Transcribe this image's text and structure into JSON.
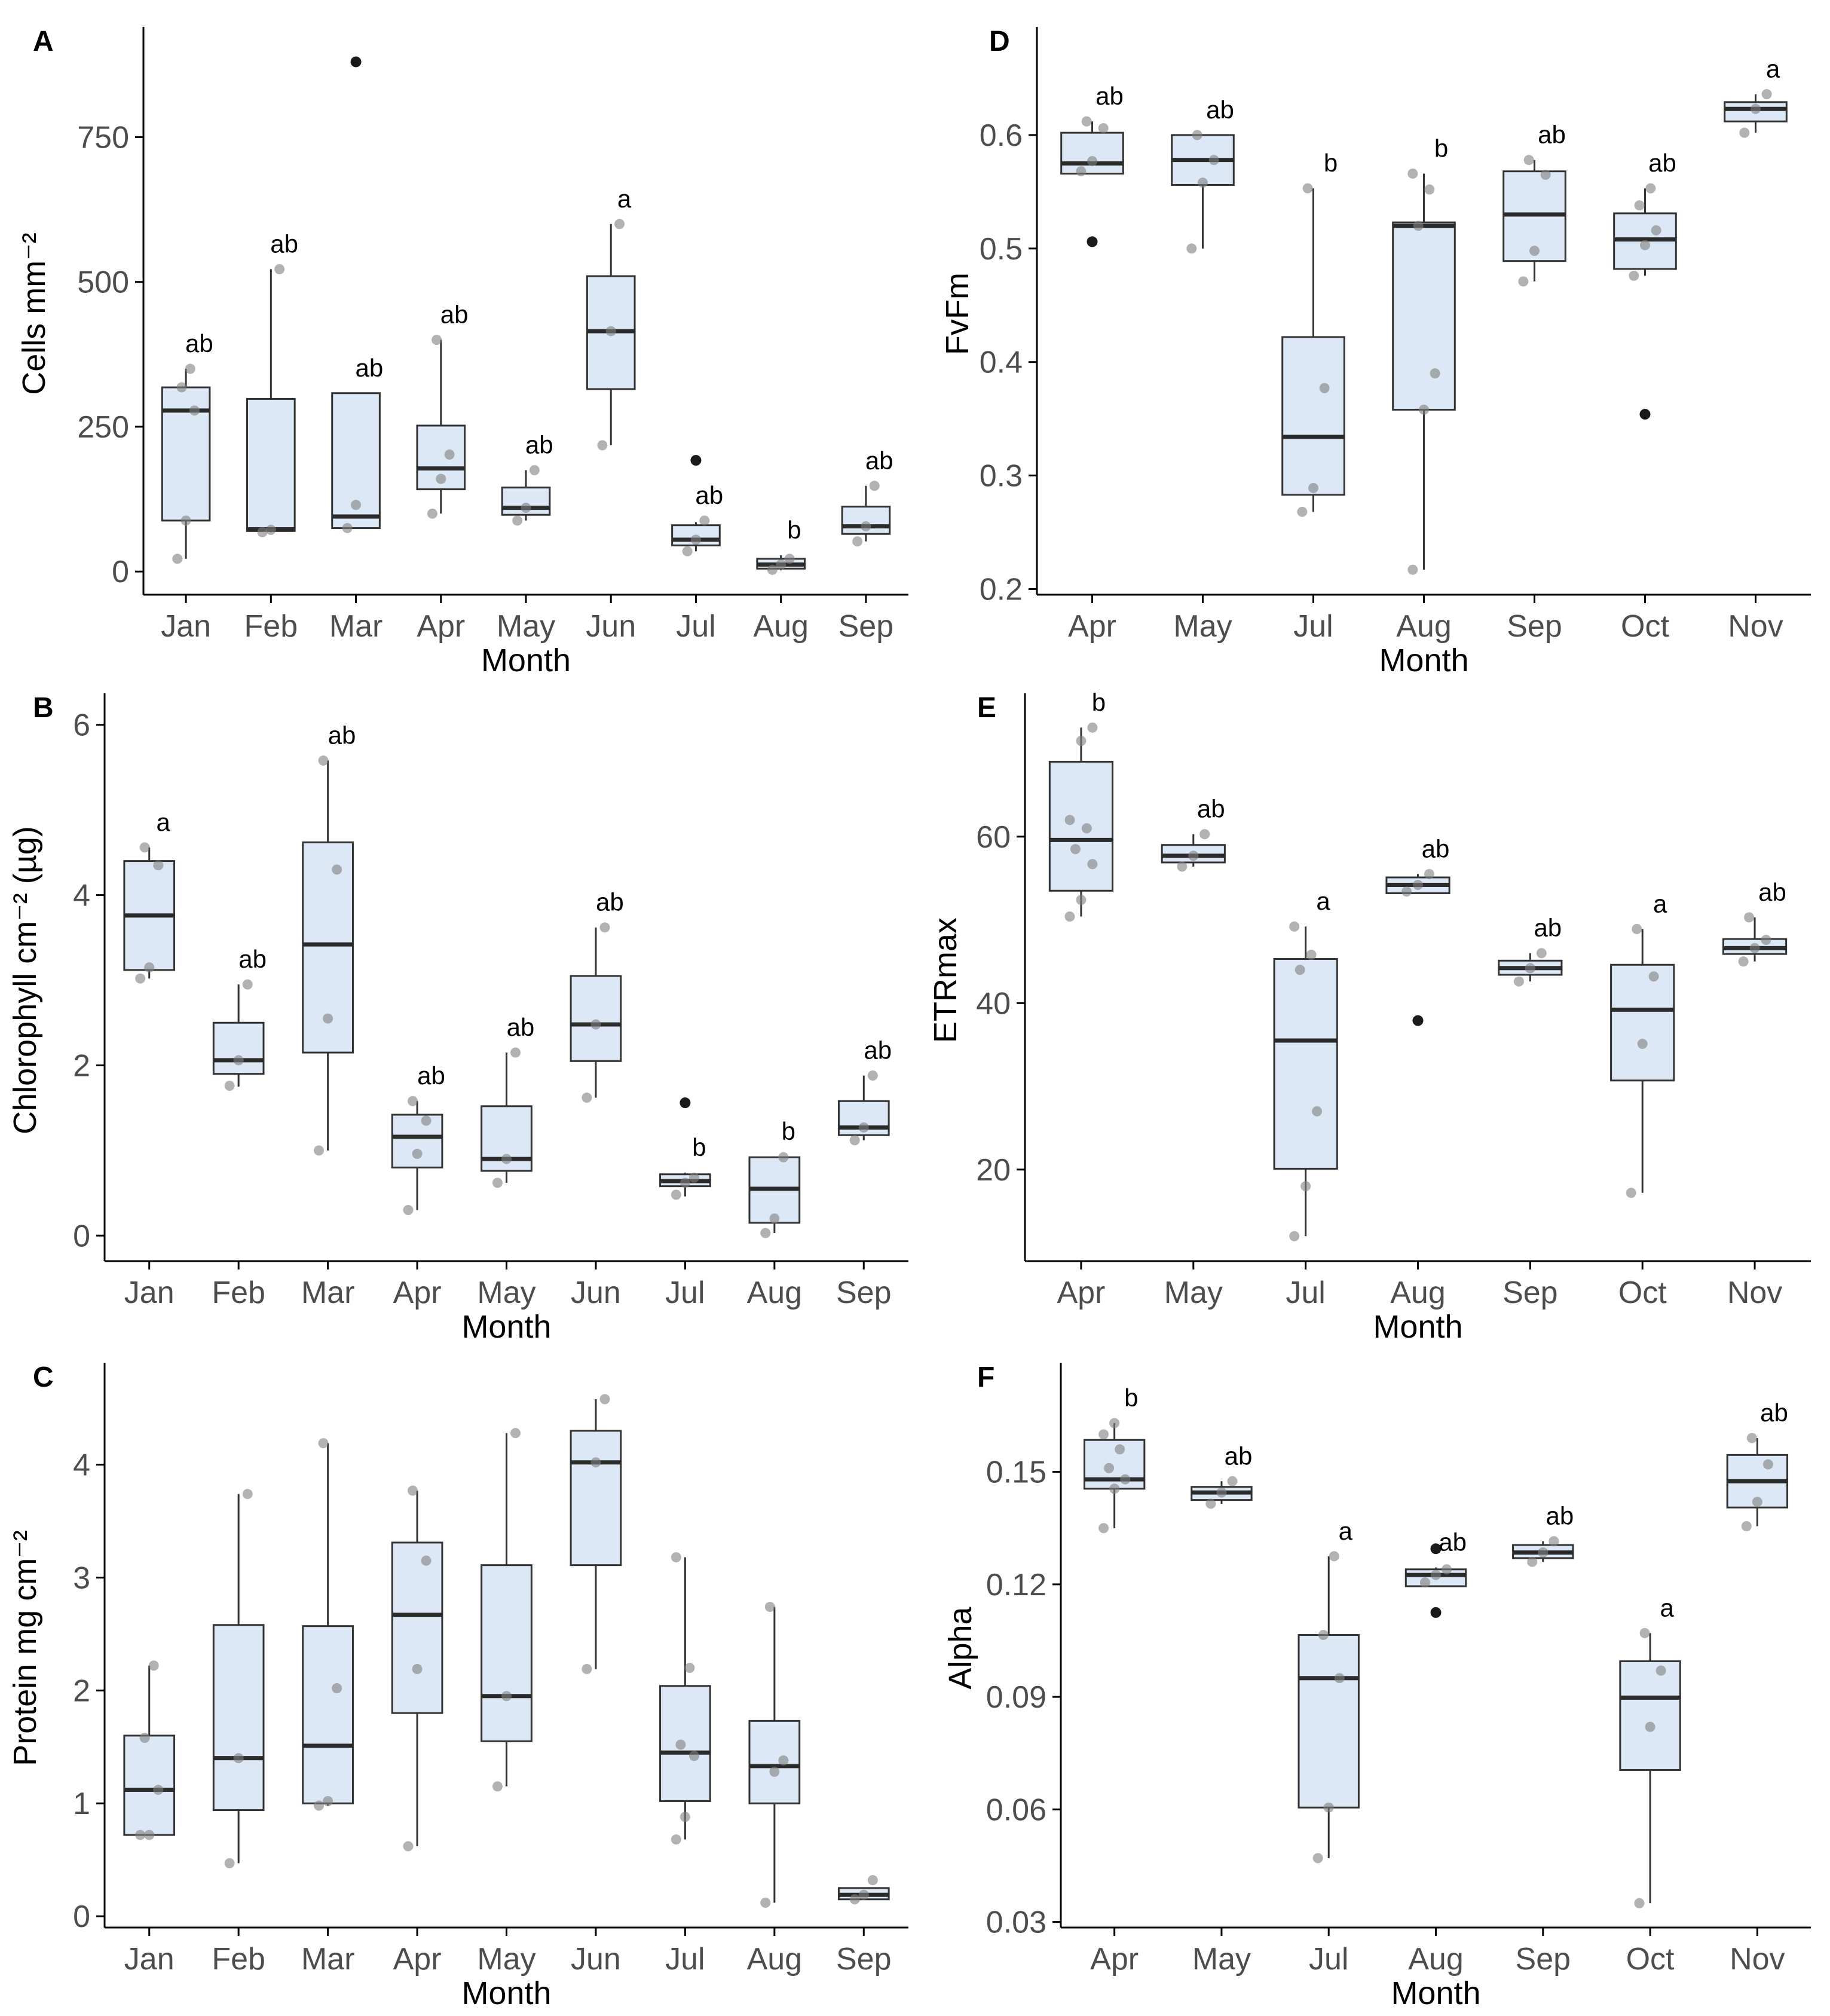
{
  "chart_data": [
    {
      "panel": "A",
      "type": "boxplot",
      "xlabel": "Month",
      "ylabel": "Cells mm⁻²",
      "ylim": [
        -40,
        930
      ],
      "yticks": [
        0,
        250,
        500,
        750
      ],
      "ytick_labels": [
        "0",
        "250",
        "500",
        "750"
      ],
      "categories": [
        {
          "label": "Jan",
          "q1": 88,
          "median": 278,
          "q3": 318,
          "whisker_low": 22,
          "whisker_high": 350,
          "points": [
            22,
            88,
            278,
            318,
            350
          ],
          "outliers": [],
          "letter": "ab"
        },
        {
          "label": "Feb",
          "q1": 70,
          "median": 73,
          "q3": 298,
          "whisker_low": 68,
          "whisker_high": 522,
          "points": [
            68,
            72,
            522
          ],
          "outliers": [],
          "letter": "ab"
        },
        {
          "label": "Mar",
          "q1": 75,
          "median": 95,
          "q3": 308,
          "whisker_low": 75,
          "whisker_high": 308,
          "points": [
            75,
            115
          ],
          "outliers": [
            880
          ],
          "letter": "ab"
        },
        {
          "label": "Apr",
          "q1": 142,
          "median": 178,
          "q3": 252,
          "whisker_low": 100,
          "whisker_high": 400,
          "points": [
            100,
            160,
            202,
            400
          ],
          "outliers": [],
          "letter": "ab"
        },
        {
          "label": "May",
          "q1": 98,
          "median": 110,
          "q3": 145,
          "whisker_low": 88,
          "whisker_high": 175,
          "points": [
            88,
            110,
            175
          ],
          "outliers": [],
          "letter": "ab"
        },
        {
          "label": "Jun",
          "q1": 315,
          "median": 415,
          "q3": 510,
          "whisker_low": 218,
          "whisker_high": 600,
          "points": [
            218,
            415,
            600
          ],
          "outliers": [],
          "letter": "a"
        },
        {
          "label": "Jul",
          "q1": 45,
          "median": 55,
          "q3": 80,
          "whisker_low": 35,
          "whisker_high": 85,
          "points": [
            35,
            55,
            88
          ],
          "outliers": [
            192
          ],
          "letter": "ab"
        },
        {
          "label": "Aug",
          "q1": 5,
          "median": 12,
          "q3": 22,
          "whisker_low": 2,
          "whisker_high": 28,
          "points": [
            3,
            12,
            22
          ],
          "outliers": [],
          "letter": "b"
        },
        {
          "label": "Sep",
          "q1": 65,
          "median": 78,
          "q3": 112,
          "whisker_low": 52,
          "whisker_high": 148,
          "points": [
            52,
            78,
            148
          ],
          "outliers": [],
          "letter": "ab"
        }
      ]
    },
    {
      "panel": "B",
      "type": "boxplot",
      "xlabel": "Month",
      "ylabel": "Chlorophyll cm⁻² (µg)",
      "ylim": [
        -0.3,
        6.3
      ],
      "yticks": [
        0,
        2,
        4,
        6
      ],
      "ytick_labels": [
        "0",
        "2",
        "4",
        "6"
      ],
      "categories": [
        {
          "label": "Jan",
          "q1": 3.12,
          "median": 3.76,
          "q3": 4.4,
          "whisker_low": 3.02,
          "whisker_high": 4.56,
          "points": [
            3.02,
            3.15,
            4.35,
            4.56
          ],
          "outliers": [],
          "letter": "a"
        },
        {
          "label": "Feb",
          "q1": 1.9,
          "median": 2.06,
          "q3": 2.5,
          "whisker_low": 1.75,
          "whisker_high": 2.95,
          "points": [
            1.76,
            2.06,
            2.95
          ],
          "outliers": [],
          "letter": "ab"
        },
        {
          "label": "Mar",
          "q1": 2.15,
          "median": 3.42,
          "q3": 4.62,
          "whisker_low": 1.0,
          "whisker_high": 5.58,
          "points": [
            1.0,
            2.55,
            4.3,
            5.58
          ],
          "outliers": [],
          "letter": "ab"
        },
        {
          "label": "Apr",
          "q1": 0.8,
          "median": 1.16,
          "q3": 1.42,
          "whisker_low": 0.3,
          "whisker_high": 1.58,
          "points": [
            0.3,
            0.96,
            1.35,
            1.58
          ],
          "outliers": [],
          "letter": "ab"
        },
        {
          "label": "May",
          "q1": 0.76,
          "median": 0.9,
          "q3": 1.52,
          "whisker_low": 0.62,
          "whisker_high": 2.15,
          "points": [
            0.62,
            0.9,
            2.15
          ],
          "outliers": [],
          "letter": "ab"
        },
        {
          "label": "Jun",
          "q1": 2.05,
          "median": 2.48,
          "q3": 3.05,
          "whisker_low": 1.62,
          "whisker_high": 3.62,
          "points": [
            1.62,
            2.48,
            3.62
          ],
          "outliers": [],
          "letter": "ab"
        },
        {
          "label": "Jul",
          "q1": 0.58,
          "median": 0.64,
          "q3": 0.72,
          "whisker_low": 0.46,
          "whisker_high": 0.74,
          "points": [
            0.48,
            0.62,
            0.68
          ],
          "outliers": [
            1.56
          ],
          "letter": "b"
        },
        {
          "label": "Aug",
          "q1": 0.15,
          "median": 0.55,
          "q3": 0.92,
          "whisker_low": 0.03,
          "whisker_high": 0.93,
          "points": [
            0.03,
            0.2,
            0.92
          ],
          "outliers": [],
          "letter": "b"
        },
        {
          "label": "Sep",
          "q1": 1.18,
          "median": 1.27,
          "q3": 1.58,
          "whisker_low": 1.12,
          "whisker_high": 1.88,
          "points": [
            1.12,
            1.27,
            1.88
          ],
          "outliers": [],
          "letter": "ab"
        }
      ]
    },
    {
      "panel": "C",
      "type": "boxplot",
      "xlabel": "Month",
      "ylabel": "Protein mg cm⁻²",
      "ylim": [
        -0.1,
        4.85
      ],
      "yticks": [
        0,
        1,
        2,
        3,
        4
      ],
      "ytick_labels": [
        "0",
        "1",
        "2",
        "3",
        "4"
      ],
      "categories": [
        {
          "label": "Jan",
          "q1": 0.72,
          "median": 1.12,
          "q3": 1.6,
          "whisker_low": 0.72,
          "whisker_high": 2.22,
          "points": [
            0.72,
            0.72,
            1.12,
            1.58,
            2.22
          ],
          "outliers": [],
          "letter": ""
        },
        {
          "label": "Feb",
          "q1": 0.94,
          "median": 1.4,
          "q3": 2.58,
          "whisker_low": 0.47,
          "whisker_high": 3.74,
          "points": [
            0.47,
            1.4,
            3.74
          ],
          "outliers": [],
          "letter": ""
        },
        {
          "label": "Mar",
          "q1": 1.0,
          "median": 1.51,
          "q3": 2.57,
          "whisker_low": 0.98,
          "whisker_high": 4.19,
          "points": [
            0.98,
            1.02,
            2.02,
            4.19
          ],
          "outliers": [],
          "letter": ""
        },
        {
          "label": "Apr",
          "q1": 1.8,
          "median": 2.67,
          "q3": 3.31,
          "whisker_low": 0.62,
          "whisker_high": 3.77,
          "points": [
            0.62,
            2.19,
            3.15,
            3.77
          ],
          "outliers": [],
          "letter": ""
        },
        {
          "label": "May",
          "q1": 1.55,
          "median": 1.95,
          "q3": 3.11,
          "whisker_low": 1.15,
          "whisker_high": 4.28,
          "points": [
            1.15,
            1.95,
            4.28
          ],
          "outliers": [],
          "letter": ""
        },
        {
          "label": "Jun",
          "q1": 3.11,
          "median": 4.02,
          "q3": 4.3,
          "whisker_low": 2.19,
          "whisker_high": 4.58,
          "points": [
            2.19,
            4.02,
            4.58
          ],
          "outliers": [],
          "letter": ""
        },
        {
          "label": "Jul",
          "q1": 1.02,
          "median": 1.45,
          "q3": 2.04,
          "whisker_low": 0.68,
          "whisker_high": 3.18,
          "points": [
            0.68,
            0.88,
            1.42,
            1.52,
            2.2,
            3.18
          ],
          "outliers": [],
          "letter": ""
        },
        {
          "label": "Aug",
          "q1": 1.0,
          "median": 1.33,
          "q3": 1.73,
          "whisker_low": 0.12,
          "whisker_high": 2.74,
          "points": [
            0.12,
            1.28,
            1.38,
            2.74
          ],
          "outliers": [],
          "letter": ""
        },
        {
          "label": "Sep",
          "q1": 0.15,
          "median": 0.19,
          "q3": 0.25,
          "whisker_low": 0.15,
          "whisker_high": 0.25,
          "points": [
            0.15,
            0.19,
            0.32
          ],
          "outliers": [],
          "letter": ""
        }
      ]
    },
    {
      "panel": "D",
      "type": "boxplot",
      "xlabel": "Month",
      "ylabel": "FvFm",
      "ylim": [
        0.195,
        0.69
      ],
      "yticks": [
        0.2,
        0.3,
        0.4,
        0.5,
        0.6
      ],
      "ytick_labels": [
        "0.2",
        "0.3",
        "0.4",
        "0.5",
        "0.6"
      ],
      "categories": [
        {
          "label": "Apr",
          "q1": 0.566,
          "median": 0.575,
          "q3": 0.602,
          "whisker_low": 0.566,
          "whisker_high": 0.612,
          "points": [
            0.568,
            0.577,
            0.606,
            0.612
          ],
          "outliers": [
            0.506
          ],
          "letter": "ab"
        },
        {
          "label": "May",
          "q1": 0.556,
          "median": 0.578,
          "q3": 0.6,
          "whisker_low": 0.5,
          "whisker_high": 0.6,
          "points": [
            0.5,
            0.558,
            0.578,
            0.6
          ],
          "outliers": [],
          "letter": "ab"
        },
        {
          "label": "Jul",
          "q1": 0.283,
          "median": 0.334,
          "q3": 0.422,
          "whisker_low": 0.268,
          "whisker_high": 0.553,
          "points": [
            0.268,
            0.289,
            0.377,
            0.553
          ],
          "outliers": [],
          "letter": "b"
        },
        {
          "label": "Aug",
          "q1": 0.358,
          "median": 0.52,
          "q3": 0.523,
          "whisker_low": 0.217,
          "whisker_high": 0.566,
          "points": [
            0.217,
            0.358,
            0.39,
            0.52,
            0.552,
            0.566
          ],
          "outliers": [],
          "letter": "b"
        },
        {
          "label": "Sep",
          "q1": 0.489,
          "median": 0.53,
          "q3": 0.568,
          "whisker_low": 0.471,
          "whisker_high": 0.578,
          "points": [
            0.471,
            0.498,
            0.565,
            0.578
          ],
          "outliers": [],
          "letter": "ab"
        },
        {
          "label": "Oct",
          "q1": 0.482,
          "median": 0.508,
          "q3": 0.531,
          "whisker_low": 0.476,
          "whisker_high": 0.553,
          "points": [
            0.476,
            0.503,
            0.516,
            0.538,
            0.553
          ],
          "outliers": [
            0.354
          ],
          "letter": "ab"
        },
        {
          "label": "Nov",
          "q1": 0.612,
          "median": 0.623,
          "q3": 0.629,
          "whisker_low": 0.602,
          "whisker_high": 0.636,
          "points": [
            0.602,
            0.623,
            0.636
          ],
          "outliers": [],
          "letter": "a"
        }
      ]
    },
    {
      "panel": "E",
      "type": "boxplot",
      "xlabel": "Month",
      "ylabel": "ETRmax",
      "ylim": [
        9,
        76.5
      ],
      "yticks": [
        20,
        40,
        60
      ],
      "ytick_labels": [
        "20",
        "40",
        "60"
      ],
      "categories": [
        {
          "label": "Apr",
          "q1": 53.5,
          "median": 59.6,
          "q3": 69.0,
          "whisker_low": 50.4,
          "whisker_high": 73.1,
          "points": [
            50.4,
            52.4,
            56.7,
            58.5,
            61.0,
            62.0,
            71.5,
            73.1
          ],
          "outliers": [],
          "letter": "b"
        },
        {
          "label": "May",
          "q1": 56.9,
          "median": 57.7,
          "q3": 59.0,
          "whisker_low": 56.4,
          "whisker_high": 60.3,
          "points": [
            56.4,
            57.7,
            60.3
          ],
          "outliers": [],
          "letter": "ab"
        },
        {
          "label": "Jul",
          "q1": 20.1,
          "median": 35.5,
          "q3": 45.3,
          "whisker_low": 12.0,
          "whisker_high": 49.2,
          "points": [
            12.0,
            18.0,
            27.0,
            44.0,
            45.8,
            49.2
          ],
          "outliers": [],
          "letter": "a"
        },
        {
          "label": "Aug",
          "q1": 53.2,
          "median": 54.2,
          "q3": 55.1,
          "whisker_low": 53.2,
          "whisker_high": 55.5,
          "points": [
            53.4,
            54.2,
            55.5
          ],
          "outliers": [
            37.9
          ],
          "letter": "ab"
        },
        {
          "label": "Sep",
          "q1": 43.4,
          "median": 44.2,
          "q3": 45.1,
          "whisker_low": 42.6,
          "whisker_high": 46.0,
          "points": [
            42.6,
            44.2,
            46.0
          ],
          "outliers": [],
          "letter": "ab"
        },
        {
          "label": "Oct",
          "q1": 30.7,
          "median": 39.2,
          "q3": 44.6,
          "whisker_low": 17.2,
          "whisker_high": 48.9,
          "points": [
            17.2,
            35.1,
            43.2,
            48.9
          ],
          "outliers": [],
          "letter": "a"
        },
        {
          "label": "Nov",
          "q1": 45.9,
          "median": 46.6,
          "q3": 47.7,
          "whisker_low": 45.0,
          "whisker_high": 50.3,
          "points": [
            45.0,
            46.6,
            47.6,
            50.3
          ],
          "outliers": [],
          "letter": "ab"
        }
      ]
    },
    {
      "panel": "F",
      "type": "boxplot",
      "xlabel": "Month",
      "ylabel": "Alpha",
      "ylim": [
        0.0285,
        0.1775
      ],
      "yticks": [
        0.03,
        0.06,
        0.09,
        0.12,
        0.15
      ],
      "ytick_labels": [
        "0.03",
        "0.06",
        "0.09",
        "0.12",
        "0.15"
      ],
      "categories": [
        {
          "label": "Apr",
          "q1": 0.1455,
          "median": 0.148,
          "q3": 0.1585,
          "whisker_low": 0.135,
          "whisker_high": 0.163,
          "points": [
            0.135,
            0.1455,
            0.148,
            0.151,
            0.156,
            0.16,
            0.163
          ],
          "outliers": [],
          "letter": "b"
        },
        {
          "label": "May",
          "q1": 0.1425,
          "median": 0.1445,
          "q3": 0.146,
          "whisker_low": 0.1415,
          "whisker_high": 0.1475,
          "points": [
            0.1415,
            0.1445,
            0.1475
          ],
          "outliers": [],
          "letter": "ab"
        },
        {
          "label": "Jul",
          "q1": 0.0605,
          "median": 0.095,
          "q3": 0.1065,
          "whisker_low": 0.047,
          "whisker_high": 0.1275,
          "points": [
            0.047,
            0.0605,
            0.095,
            0.1065,
            0.1275
          ],
          "outliers": [],
          "letter": "a"
        },
        {
          "label": "Aug",
          "q1": 0.1195,
          "median": 0.1225,
          "q3": 0.124,
          "whisker_low": 0.1195,
          "whisker_high": 0.1245,
          "points": [
            0.1205,
            0.1225,
            0.124
          ],
          "outliers": [
            0.1125,
            0.1295
          ],
          "letter": "ab"
        },
        {
          "label": "Sep",
          "q1": 0.127,
          "median": 0.1285,
          "q3": 0.1305,
          "whisker_low": 0.126,
          "whisker_high": 0.1315,
          "points": [
            0.126,
            0.1285,
            0.1315
          ],
          "outliers": [],
          "letter": "ab"
        },
        {
          "label": "Oct",
          "q1": 0.0705,
          "median": 0.0898,
          "q3": 0.0995,
          "whisker_low": 0.035,
          "whisker_high": 0.107,
          "points": [
            0.035,
            0.082,
            0.097,
            0.107
          ],
          "outliers": [],
          "letter": "a"
        },
        {
          "label": "Nov",
          "q1": 0.1405,
          "median": 0.1475,
          "q3": 0.1545,
          "whisker_low": 0.1355,
          "whisker_high": 0.159,
          "points": [
            0.1355,
            0.142,
            0.152,
            0.159
          ],
          "outliers": [],
          "letter": "ab"
        }
      ]
    }
  ]
}
